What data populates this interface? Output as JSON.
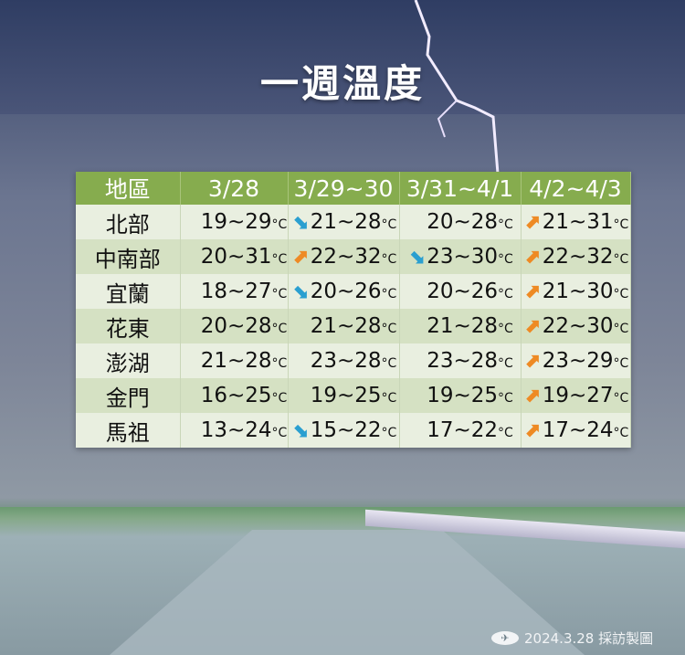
{
  "title": "一週溫度",
  "table": {
    "headers": [
      "地區",
      "3/28",
      "3/29~30",
      "3/31~4/1",
      "4/2~4/3"
    ],
    "unit": "°C",
    "rows": [
      {
        "region": "北部",
        "cells": [
          {
            "v": "19~29",
            "trend": null
          },
          {
            "v": "21~28",
            "trend": "down"
          },
          {
            "v": "20~28",
            "trend": null
          },
          {
            "v": "21~31",
            "trend": "up"
          }
        ]
      },
      {
        "region": "中南部",
        "cells": [
          {
            "v": "20~31",
            "trend": null
          },
          {
            "v": "22~32",
            "trend": "up"
          },
          {
            "v": "23~30",
            "trend": "down"
          },
          {
            "v": "22~32",
            "trend": "up"
          }
        ]
      },
      {
        "region": "宜蘭",
        "cells": [
          {
            "v": "18~27",
            "trend": null
          },
          {
            "v": "20~26",
            "trend": "down"
          },
          {
            "v": "20~26",
            "trend": null
          },
          {
            "v": "21~30",
            "trend": "up"
          }
        ]
      },
      {
        "region": "花東",
        "cells": [
          {
            "v": "20~28",
            "trend": null
          },
          {
            "v": "21~28",
            "trend": null
          },
          {
            "v": "21~28",
            "trend": null
          },
          {
            "v": "22~30",
            "trend": "up"
          }
        ]
      },
      {
        "region": "澎湖",
        "cells": [
          {
            "v": "21~28",
            "trend": null
          },
          {
            "v": "23~28",
            "trend": null
          },
          {
            "v": "23~28",
            "trend": null
          },
          {
            "v": "23~29",
            "trend": "up"
          }
        ]
      },
      {
        "region": "金門",
        "cells": [
          {
            "v": "16~25",
            "trend": null
          },
          {
            "v": "19~25",
            "trend": null
          },
          {
            "v": "19~25",
            "trend": null
          },
          {
            "v": "19~27",
            "trend": "up"
          }
        ]
      },
      {
        "region": "馬祖",
        "cells": [
          {
            "v": "13~24",
            "trend": null
          },
          {
            "v": "15~22",
            "trend": "down"
          },
          {
            "v": "17~22",
            "trend": null
          },
          {
            "v": "17~24",
            "trend": "up"
          }
        ]
      }
    ]
  },
  "colors": {
    "header": "#86ac4e",
    "up": "#ee8a24",
    "down": "#2a9fd0"
  },
  "footer": {
    "text": "2024.3.28 採訪製圖",
    "logo": "cna-logo"
  }
}
